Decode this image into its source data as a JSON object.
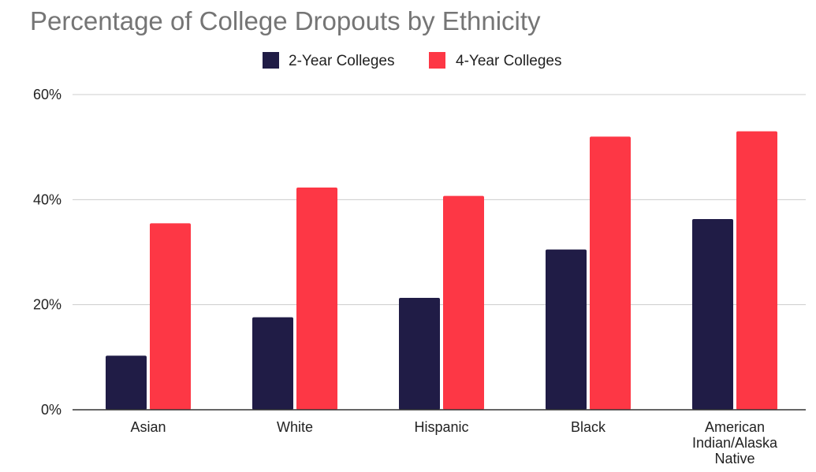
{
  "chart_data": {
    "type": "bar",
    "title": "Percentage of College Dropouts by Ethnicity",
    "xlabel": "",
    "ylabel": "",
    "categories": [
      "Asian",
      "White",
      "Hispanic",
      "Black",
      "American Indian/Alaska Native"
    ],
    "category_lines": [
      [
        "Asian"
      ],
      [
        "White"
      ],
      [
        "Hispanic"
      ],
      [
        "Black"
      ],
      [
        "American",
        "Indian/Alaska",
        "Native"
      ]
    ],
    "series": [
      {
        "name": "2-Year Colleges",
        "color": "#201c46",
        "values": [
          10.3,
          17.6,
          21.3,
          30.5,
          36.3
        ]
      },
      {
        "name": "4-Year Colleges",
        "color": "#fd3745",
        "values": [
          35.5,
          42.3,
          40.7,
          52.0,
          53.0
        ]
      }
    ],
    "ylim": [
      0,
      60
    ],
    "yticks": [
      0,
      20,
      40,
      60
    ],
    "ytick_labels": [
      "0%",
      "20%",
      "40%",
      "60%"
    ],
    "grid": true,
    "legend_position": "top-center"
  }
}
